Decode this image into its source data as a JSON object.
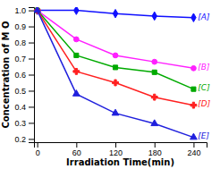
{
  "chart_data": {
    "type": "line",
    "xlabel": "Irradiation Time(min)",
    "ylabel": "Concentration of M O",
    "x": [
      0,
      60,
      120,
      180,
      240
    ],
    "series": [
      {
        "name": "A",
        "color": "#1010FF",
        "marker": "diamond",
        "values": [
          1.0,
          1.0,
          0.98,
          0.965,
          0.955
        ]
      },
      {
        "name": "B",
        "color": "#FF20FF",
        "marker": "circle",
        "values": [
          1.0,
          0.82,
          0.72,
          0.68,
          0.64
        ]
      },
      {
        "name": "C",
        "color": "#00AA00",
        "marker": "square",
        "values": [
          1.0,
          0.72,
          0.645,
          0.615,
          0.51
        ]
      },
      {
        "name": "D",
        "color": "#FF2020",
        "marker": "plus",
        "values": [
          1.0,
          0.62,
          0.55,
          0.46,
          0.41
        ]
      },
      {
        "name": "E",
        "color": "#2020DD",
        "marker": "triangle",
        "values": [
          1.0,
          0.48,
          0.36,
          0.295,
          0.21
        ]
      }
    ],
    "annotations": [
      {
        "text": "[A]",
        "x": 244,
        "y": 0.955,
        "color": "#1010FF"
      },
      {
        "text": "[B]",
        "x": 244,
        "y": 0.645,
        "color": "#FF20FF"
      },
      {
        "text": "[C]",
        "x": 244,
        "y": 0.515,
        "color": "#00AA00"
      },
      {
        "text": "[D]",
        "x": 244,
        "y": 0.415,
        "color": "#FF2020"
      },
      {
        "text": "[E]",
        "x": 244,
        "y": 0.215,
        "color": "#2020DD"
      }
    ],
    "xlim": [
      -5,
      260
    ],
    "ylim": [
      0.18,
      1.02
    ],
    "xticks": [
      0,
      60,
      120,
      180,
      240
    ],
    "yticks": [
      0.2,
      0.3,
      0.4,
      0.5,
      0.6,
      0.7,
      0.8,
      0.9,
      {
        "value": 1.0,
        "label": "1.0"
      }
    ],
    "grid": false
  }
}
